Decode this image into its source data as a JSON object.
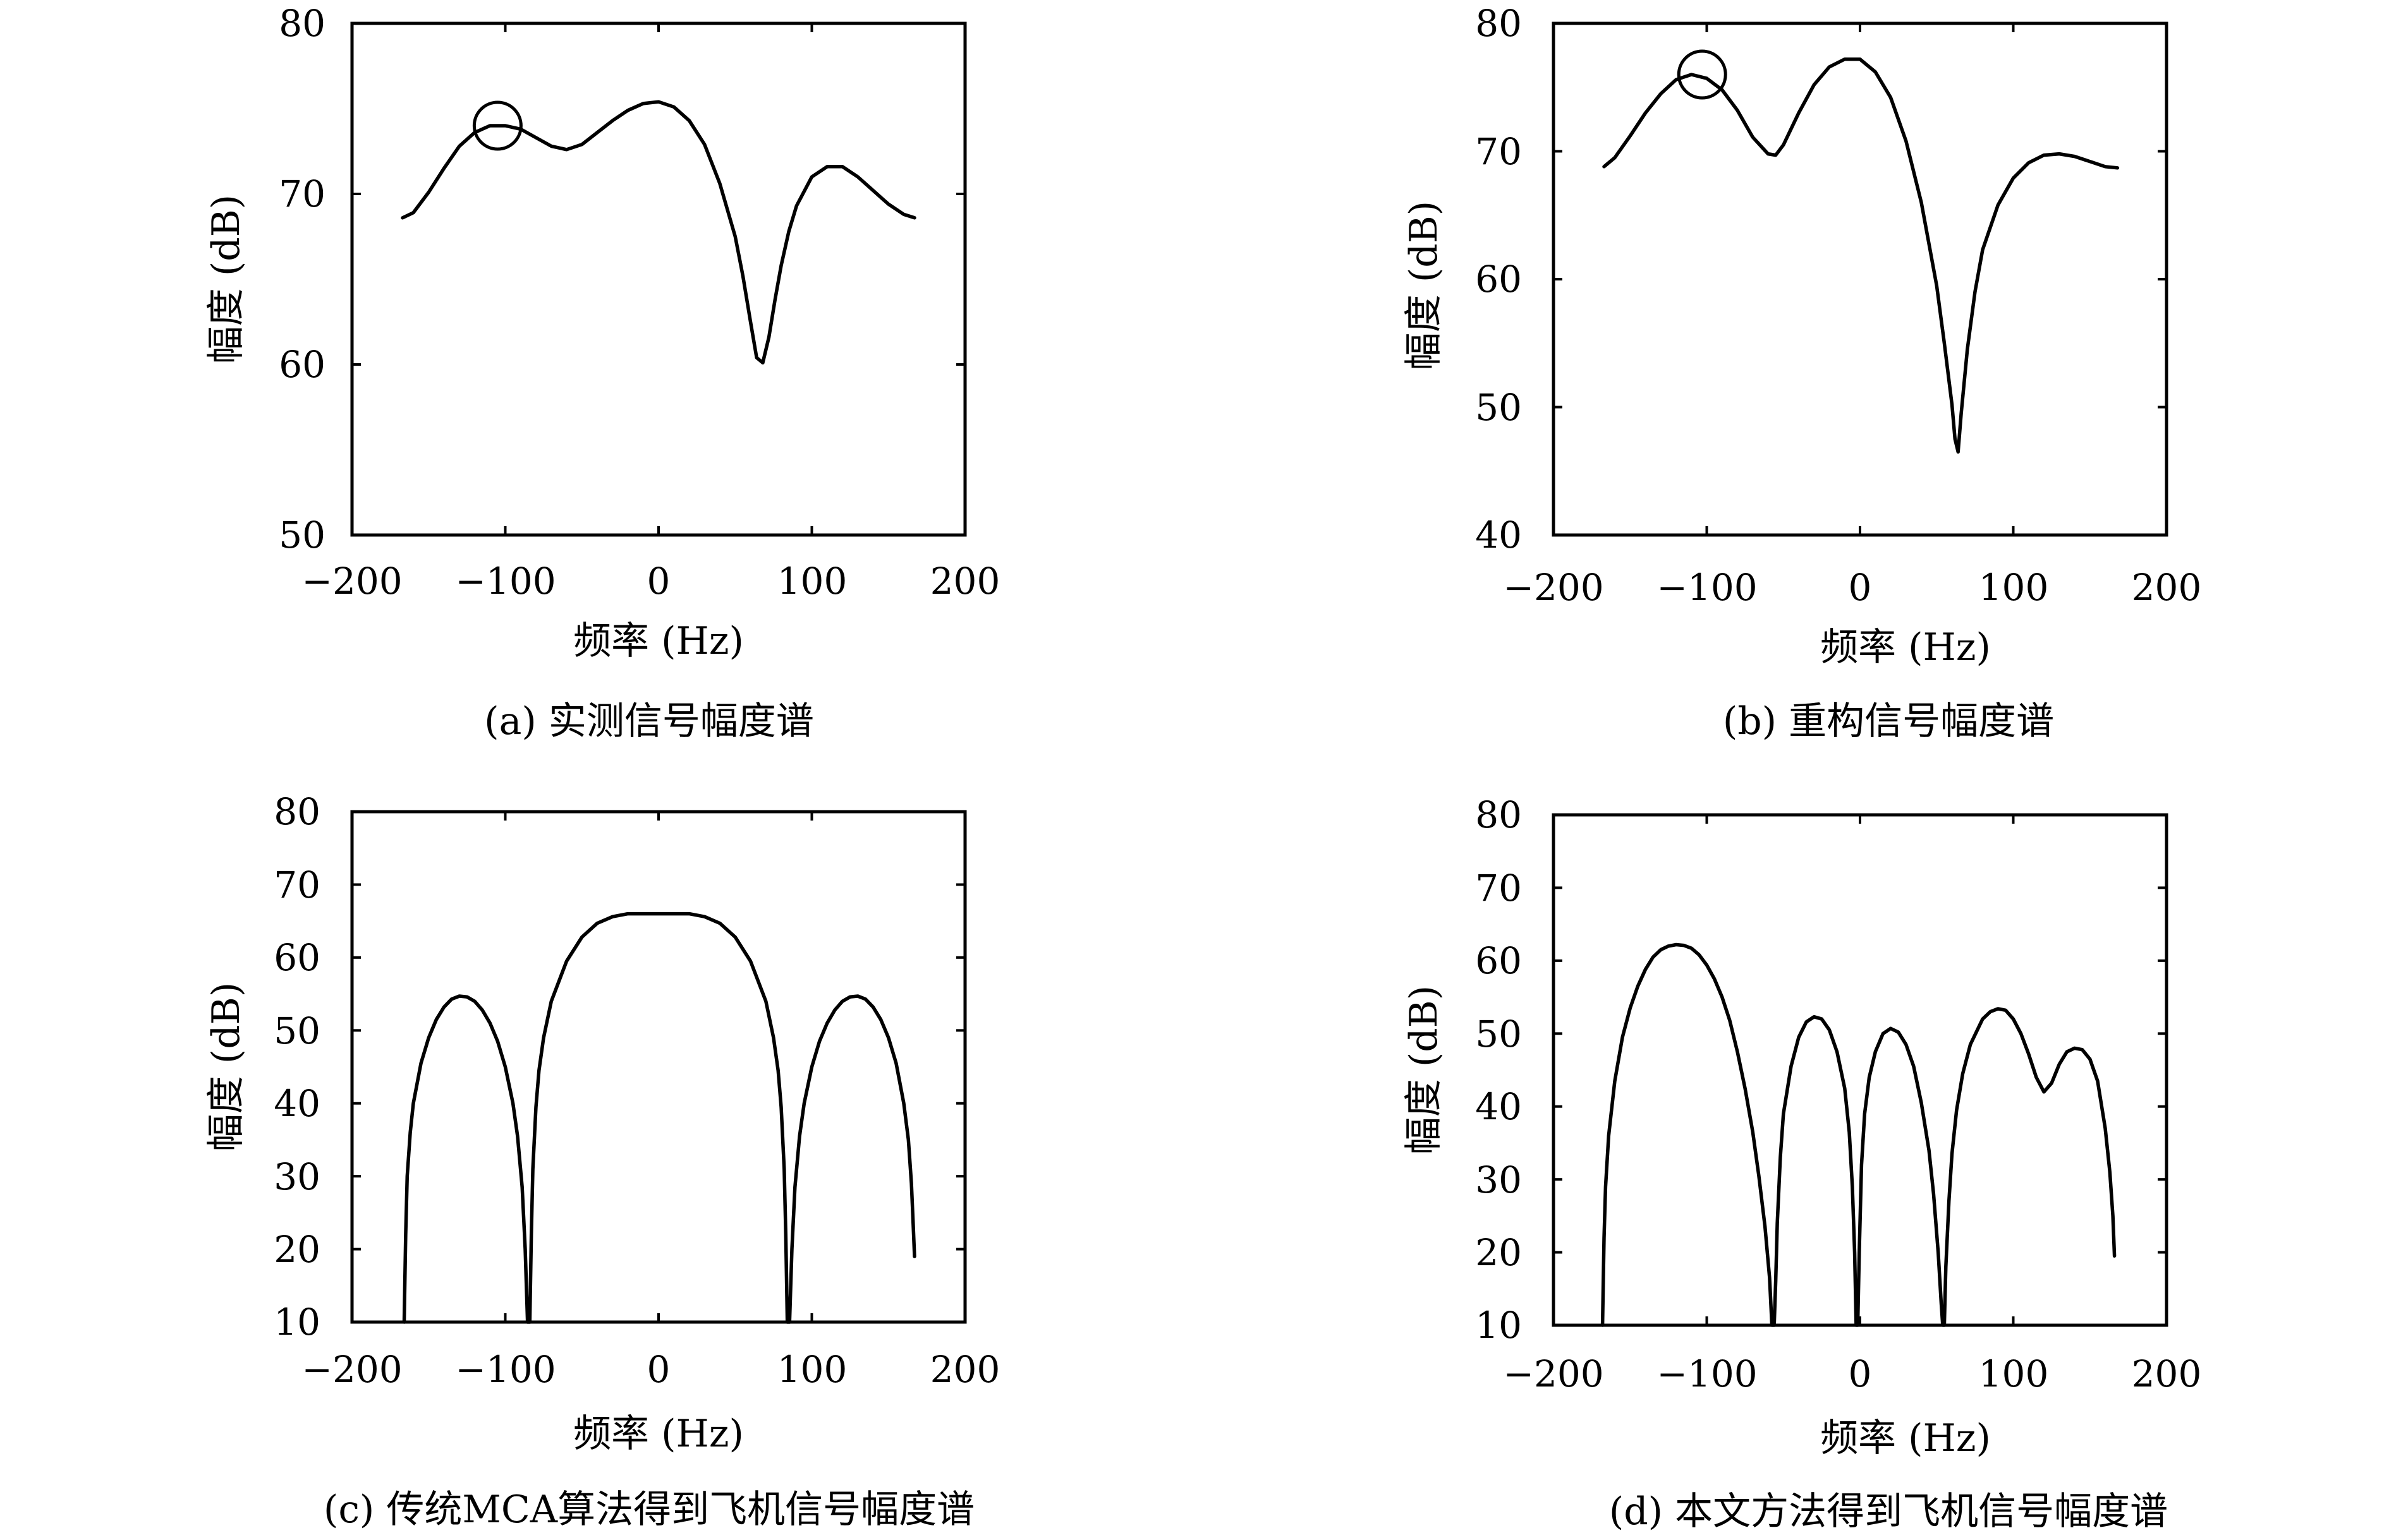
{
  "chart_data": [
    {
      "id": "a",
      "type": "line",
      "caption": "(a) 实测信号幅度谱",
      "xlabel": "频率 (Hz)",
      "ylabel": "幅度 (dB)",
      "xlim": [
        -200,
        200
      ],
      "ylim": [
        50,
        80
      ],
      "xticks": [
        -200,
        -100,
        0,
        100,
        200
      ],
      "yticks": [
        50,
        60,
        70,
        80
      ],
      "xtick_labels": [
        "−200",
        "−100",
        "0",
        "100",
        "200"
      ],
      "ytick_labels": [
        "50",
        "60",
        "70",
        "80"
      ],
      "grid": false,
      "marker_circle_at": [
        -105,
        74
      ],
      "series": [
        {
          "x": [
            -167,
            -160,
            -150,
            -140,
            -130,
            -120,
            -110,
            -100,
            -90,
            -80,
            -70,
            -60,
            -50,
            -40,
            -30,
            -20,
            -10,
            0,
            10,
            20,
            30,
            40,
            50,
            55,
            60,
            64,
            68,
            72,
            76,
            80,
            85,
            90,
            100,
            110,
            120,
            130,
            140,
            150,
            160,
            167
          ],
          "y": [
            68.6,
            68.9,
            70.1,
            71.5,
            72.8,
            73.6,
            74.0,
            74.0,
            73.8,
            73.3,
            72.8,
            72.6,
            72.9,
            73.6,
            74.3,
            74.9,
            75.3,
            75.4,
            75.1,
            74.3,
            72.9,
            70.6,
            67.5,
            65.2,
            62.5,
            60.4,
            60.1,
            61.6,
            63.8,
            65.8,
            67.8,
            69.3,
            71.0,
            71.6,
            71.6,
            71.0,
            70.2,
            69.4,
            68.8,
            68.6
          ]
        }
      ]
    },
    {
      "id": "b",
      "type": "line",
      "caption": "(b) 重构信号幅度谱",
      "xlabel": "频率 (Hz)",
      "ylabel": "幅度 (dB)",
      "xlim": [
        -200,
        200
      ],
      "ylim": [
        40,
        80
      ],
      "xticks": [
        -200,
        -100,
        0,
        100,
        200
      ],
      "yticks": [
        40,
        50,
        60,
        70,
        80
      ],
      "xtick_labels": [
        "−200",
        "−100",
        "0",
        "100",
        "200"
      ],
      "ytick_labels": [
        "40",
        "50",
        "60",
        "70",
        "80"
      ],
      "grid": false,
      "marker_circle_at": [
        -103,
        76
      ],
      "series": [
        {
          "x": [
            -167,
            -160,
            -150,
            -140,
            -130,
            -120,
            -110,
            -100,
            -90,
            -80,
            -70,
            -60,
            -55,
            -50,
            -40,
            -30,
            -20,
            -10,
            0,
            10,
            20,
            30,
            40,
            50,
            55,
            60,
            62,
            64,
            66,
            70,
            75,
            80,
            90,
            100,
            110,
            120,
            130,
            140,
            150,
            160,
            168
          ],
          "y": [
            68.8,
            69.5,
            71.2,
            73.0,
            74.5,
            75.6,
            76.0,
            75.7,
            74.8,
            73.2,
            71.1,
            69.8,
            69.7,
            70.5,
            73.0,
            75.2,
            76.6,
            77.2,
            77.2,
            76.2,
            74.2,
            70.8,
            66.0,
            59.5,
            55.0,
            50.2,
            47.5,
            46.5,
            49.5,
            54.5,
            59.0,
            62.3,
            65.8,
            67.9,
            69.1,
            69.7,
            69.8,
            69.6,
            69.2,
            68.8,
            68.7
          ]
        }
      ]
    },
    {
      "id": "c",
      "type": "line",
      "caption": "(c) 传统MCA算法得到飞机信号幅度谱",
      "xlabel": "频率 (Hz)",
      "ylabel": "幅度 (dB)",
      "xlim": [
        -200,
        200
      ],
      "ylim": [
        10,
        80
      ],
      "xticks": [
        -200,
        -100,
        0,
        100,
        200
      ],
      "yticks": [
        10,
        20,
        30,
        40,
        50,
        60,
        70,
        80
      ],
      "xtick_labels": [
        "−200",
        "−100",
        "0",
        "100",
        "200"
      ],
      "ytick_labels": [
        "10",
        "20",
        "30",
        "40",
        "50",
        "60",
        "70",
        "80"
      ],
      "grid": false,
      "series": [
        {
          "x": [
            -166,
            -165,
            -164,
            -162,
            -160,
            -155,
            -150,
            -145,
            -140,
            -135,
            -130,
            -125,
            -120,
            -115,
            -110,
            -105,
            -100,
            -95,
            -92,
            -89,
            -87,
            -85.5,
            -84,
            -83,
            -82,
            -80,
            -78,
            -75,
            -70,
            -60,
            -50,
            -40,
            -30,
            -20,
            -10,
            0,
            10,
            20,
            30,
            40,
            50,
            60,
            70,
            75,
            78,
            80,
            82,
            83,
            84,
            85.5,
            87,
            89,
            92,
            95,
            100,
            105,
            110,
            115,
            120,
            125,
            130,
            135,
            140,
            145,
            150,
            155,
            160,
            163,
            165,
            166,
            167
          ],
          "y": [
            10,
            22,
            30,
            36,
            40,
            45.5,
            49,
            51.5,
            53.2,
            54.3,
            54.7,
            54.6,
            54.0,
            52.8,
            51.0,
            48.5,
            45.0,
            40.0,
            35.5,
            28.5,
            20,
            10,
            10,
            22,
            31,
            39.5,
            44.5,
            49,
            54,
            59.5,
            62.8,
            64.7,
            65.6,
            66.0,
            66.0,
            66.0,
            66.0,
            66.0,
            65.6,
            64.7,
            62.8,
            59.5,
            54,
            49,
            44.5,
            39.5,
            31,
            22,
            10,
            10,
            20,
            28.5,
            35.5,
            40.0,
            45.0,
            48.5,
            51.0,
            52.8,
            54.0,
            54.6,
            54.7,
            54.3,
            53.2,
            51.5,
            49,
            45.5,
            40,
            35,
            29,
            24,
            19
          ]
        }
      ]
    },
    {
      "id": "d",
      "type": "line",
      "caption": "(d) 本文方法得到飞机信号幅度谱",
      "xlabel": "频率 (Hz)",
      "ylabel": "幅度 (dB)",
      "xlim": [
        -200,
        200
      ],
      "ylim": [
        10,
        80
      ],
      "xticks": [
        -200,
        -100,
        0,
        100,
        200
      ],
      "yticks": [
        10,
        20,
        30,
        40,
        50,
        60,
        70,
        80
      ],
      "xtick_labels": [
        "−200",
        "−100",
        "0",
        "100",
        "200"
      ],
      "ytick_labels": [
        "10",
        "20",
        "30",
        "40",
        "50",
        "60",
        "70",
        "80"
      ],
      "grid": false,
      "series": [
        {
          "x": [
            -168,
            -167,
            -166,
            -164,
            -160,
            -155,
            -150,
            -145,
            -140,
            -135,
            -130,
            -125,
            -120,
            -115,
            -110,
            -105,
            -100,
            -95,
            -90,
            -85,
            -80,
            -75,
            -70,
            -66,
            -62,
            -59,
            -57.5,
            -56,
            -55,
            -54,
            -52,
            -50,
            -45,
            -40,
            -35,
            -30,
            -25,
            -20,
            -15,
            -10,
            -7,
            -5,
            -3.5,
            -2.5,
            -1.5,
            -0.5,
            1,
            3,
            6,
            10,
            15,
            20,
            25,
            30,
            35,
            40,
            45,
            48,
            51,
            53,
            54,
            55,
            56,
            58,
            60,
            63,
            67,
            72,
            80,
            85,
            90,
            95,
            100,
            105,
            110,
            115,
            120,
            125,
            130,
            135,
            140,
            145,
            150,
            155,
            160,
            163,
            165,
            166
          ],
          "y": [
            10,
            22,
            29,
            36,
            43.5,
            49.5,
            53.5,
            56.5,
            58.8,
            60.5,
            61.5,
            62.0,
            62.2,
            62.1,
            61.7,
            60.8,
            59.4,
            57.5,
            55.0,
            51.8,
            47.5,
            42.5,
            36.5,
            30.5,
            23.5,
            16.5,
            10,
            10,
            16,
            24,
            33,
            39,
            45.5,
            49.5,
            51.6,
            52.3,
            52.0,
            50.5,
            47.5,
            42.5,
            36.5,
            29,
            20,
            10,
            10,
            20,
            32,
            39,
            44,
            47.5,
            50.0,
            50.7,
            50.2,
            48.5,
            45.5,
            40.5,
            34,
            28,
            20,
            13,
            10,
            10,
            18,
            27,
            33.5,
            39.5,
            44.5,
            48.5,
            52.0,
            53.0,
            53.4,
            53.2,
            52.0,
            50.0,
            47.2,
            44.0,
            42.0,
            43.2,
            45.8,
            47.5,
            48.0,
            47.8,
            46.5,
            43.5,
            37,
            31,
            25,
            19.5
          ]
        }
      ]
    }
  ]
}
